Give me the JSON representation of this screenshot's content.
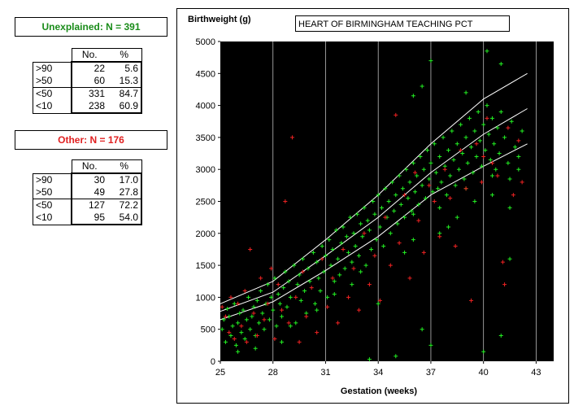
{
  "groups": [
    {
      "title": "Unexplained: N = 391",
      "color": "#1a8c1a",
      "headers": {
        "no": "No.",
        "pct": "%"
      },
      "rows": [
        {
          "label": ">90",
          "no": "22",
          "pct": "5.6"
        },
        {
          "label": ">50",
          "no": "60",
          "pct": "15.3"
        },
        {
          "label": "<50",
          "no": "331",
          "pct": "84.7"
        },
        {
          "label": "<10",
          "no": "238",
          "pct": "60.9"
        }
      ]
    },
    {
      "title": "Other: N = 176",
      "color": "#e02020",
      "headers": {
        "no": "No.",
        "pct": "%"
      },
      "rows": [
        {
          "label": ">90",
          "no": "30",
          "pct": "17.0"
        },
        {
          "label": ">50",
          "no": "49",
          "pct": "27.8"
        },
        {
          "label": "<50",
          "no": "127",
          "pct": "72.2"
        },
        {
          "label": "<10",
          "no": "95",
          "pct": "54.0"
        }
      ]
    }
  ],
  "chart_data": {
    "type": "scatter",
    "title": "HEART OF BIRMINGHAM TEACHING PCT",
    "xlabel": "Gestation (weeks)",
    "ylabel": "Birthweight (g)",
    "xlim": [
      25,
      44
    ],
    "ylim": [
      0,
      5000
    ],
    "xticks": [
      "25",
      "28",
      "31",
      "34",
      "37",
      "40",
      "43"
    ],
    "yticks": [
      "0",
      "500",
      "1000",
      "1500",
      "2000",
      "2500",
      "3000",
      "3500",
      "4000",
      "4500",
      "5000"
    ],
    "xtick_values": [
      25,
      28,
      31,
      34,
      37,
      40,
      43
    ],
    "ytick_values": [
      0,
      500,
      1000,
      1500,
      2000,
      2500,
      3000,
      3500,
      4000,
      4500,
      5000
    ],
    "background": "#000000",
    "grid": "vertical",
    "series_colors": {
      "unexplained": "#22ee22",
      "other": "#ee2222",
      "centile_lines": "#ffffff"
    },
    "centile_lines": [
      {
        "points": [
          [
            25,
            900
          ],
          [
            28,
            1250
          ],
          [
            31,
            1900
          ],
          [
            34,
            2600
          ],
          [
            37,
            3400
          ],
          [
            40,
            4100
          ],
          [
            42.5,
            4500
          ]
        ]
      },
      {
        "points": [
          [
            25,
            780
          ],
          [
            28,
            1080
          ],
          [
            31,
            1650
          ],
          [
            34,
            2250
          ],
          [
            37,
            2950
          ],
          [
            40,
            3550
          ],
          [
            42.5,
            3950
          ]
        ]
      },
      {
        "points": [
          [
            25,
            650
          ],
          [
            28,
            930
          ],
          [
            31,
            1420
          ],
          [
            34,
            1950
          ],
          [
            37,
            2600
          ],
          [
            40,
            3050
          ],
          [
            42.5,
            3400
          ]
        ]
      }
    ],
    "unexplained_points": [
      [
        25.1,
        500
      ],
      [
        25.2,
        650
      ],
      [
        25.3,
        300
      ],
      [
        25.4,
        820
      ],
      [
        25.5,
        700
      ],
      [
        25.6,
        400
      ],
      [
        25.7,
        550
      ],
      [
        25.8,
        900
      ],
      [
        25.9,
        250
      ],
      [
        26.0,
        600
      ],
      [
        26.1,
        750
      ],
      [
        26.2,
        450
      ],
      [
        26.3,
        800
      ],
      [
        26.4,
        350
      ],
      [
        26.5,
        650
      ],
      [
        26.6,
        1000
      ],
      [
        26.7,
        500
      ],
      [
        26.8,
        700
      ],
      [
        26.9,
        850
      ],
      [
        27.0,
        400
      ],
      [
        27.1,
        950
      ],
      [
        27.2,
        600
      ],
      [
        27.3,
        1100
      ],
      [
        27.4,
        750
      ],
      [
        27.5,
        500
      ],
      [
        27.6,
        900
      ],
      [
        27.7,
        1200
      ],
      [
        27.8,
        650
      ],
      [
        27.9,
        1000
      ],
      [
        28.0,
        800
      ],
      [
        28.1,
        1300
      ],
      [
        28.2,
        550
      ],
      [
        28.3,
        1050
      ],
      [
        28.4,
        900
      ],
      [
        28.5,
        700
      ],
      [
        28.6,
        1150
      ],
      [
        28.7,
        1400
      ],
      [
        28.8,
        850
      ],
      [
        28.9,
        1250
      ],
      [
        29.0,
        1000
      ],
      [
        29.2,
        1500
      ],
      [
        29.3,
        600
      ],
      [
        29.4,
        1200
      ],
      [
        29.5,
        1350
      ],
      [
        29.6,
        950
      ],
      [
        29.7,
        1600
      ],
      [
        29.8,
        1100
      ],
      [
        29.9,
        750
      ],
      [
        30.0,
        1450
      ],
      [
        30.1,
        1250
      ],
      [
        30.3,
        1700
      ],
      [
        30.4,
        900
      ],
      [
        30.5,
        1550
      ],
      [
        30.6,
        1300
      ],
      [
        30.7,
        1100
      ],
      [
        30.8,
        1800
      ],
      [
        30.9,
        1400
      ],
      [
        31.0,
        1650
      ],
      [
        31.1,
        1000
      ],
      [
        31.2,
        1900
      ],
      [
        31.3,
        1500
      ],
      [
        31.4,
        1750
      ],
      [
        31.5,
        1250
      ],
      [
        31.6,
        2050
      ],
      [
        31.7,
        1600
      ],
      [
        31.8,
        1350
      ],
      [
        31.9,
        1850
      ],
      [
        32.0,
        2100
      ],
      [
        32.1,
        1450
      ],
      [
        32.2,
        1950
      ],
      [
        32.3,
        1700
      ],
      [
        32.4,
        2250
      ],
      [
        32.5,
        1550
      ],
      [
        32.6,
        2000
      ],
      [
        32.7,
        1800
      ],
      [
        32.8,
        2300
      ],
      [
        32.9,
        1650
      ],
      [
        33.0,
        2150
      ],
      [
        33.1,
        1950
      ],
      [
        33.2,
        2400
      ],
      [
        33.3,
        1500
      ],
      [
        33.4,
        2200
      ],
      [
        33.5,
        2050
      ],
      [
        33.6,
        1750
      ],
      [
        33.7,
        2500
      ],
      [
        33.8,
        2300
      ],
      [
        33.9,
        1900
      ],
      [
        34.0,
        2600
      ],
      [
        34.1,
        2100
      ],
      [
        34.2,
        2400
      ],
      [
        34.3,
        1800
      ],
      [
        34.4,
        2700
      ],
      [
        34.5,
        2250
      ],
      [
        34.6,
        2500
      ],
      [
        34.7,
        2000
      ],
      [
        34.8,
        2800
      ],
      [
        34.9,
        2350
      ],
      [
        35.0,
        2600
      ],
      [
        35.1,
        2150
      ],
      [
        35.2,
        2900
      ],
      [
        35.3,
        2450
      ],
      [
        35.4,
        2700
      ],
      [
        35.5,
        2250
      ],
      [
        35.6,
        3000
      ],
      [
        35.7,
        2550
      ],
      [
        35.8,
        2800
      ],
      [
        35.9,
        2350
      ],
      [
        36.0,
        3100
      ],
      [
        36.1,
        2650
      ],
      [
        36.2,
        2900
      ],
      [
        36.3,
        2450
      ],
      [
        36.4,
        3200
      ],
      [
        36.5,
        2750
      ],
      [
        36.6,
        3000
      ],
      [
        36.7,
        2550
      ],
      [
        36.8,
        3300
      ],
      [
        36.9,
        2850
      ],
      [
        37.0,
        3100
      ],
      [
        37.1,
        2650
      ],
      [
        37.2,
        3400
      ],
      [
        37.3,
        2950
      ],
      [
        37.4,
        2700
      ],
      [
        37.5,
        3200
      ],
      [
        37.6,
        2800
      ],
      [
        37.7,
        3500
      ],
      [
        37.8,
        3050
      ],
      [
        37.9,
        2600
      ],
      [
        38.0,
        3300
      ],
      [
        38.1,
        2900
      ],
      [
        38.2,
        3600
      ],
      [
        38.3,
        3150
      ],
      [
        38.4,
        2750
      ],
      [
        38.5,
        3400
      ],
      [
        38.6,
        3000
      ],
      [
        38.7,
        3700
      ],
      [
        38.8,
        3250
      ],
      [
        38.9,
        2850
      ],
      [
        39.0,
        3500
      ],
      [
        39.1,
        3100
      ],
      [
        39.2,
        3800
      ],
      [
        39.3,
        3350
      ],
      [
        39.4,
        2950
      ],
      [
        39.5,
        3600
      ],
      [
        39.6,
        3200
      ],
      [
        39.7,
        3900
      ],
      [
        39.8,
        3450
      ],
      [
        39.9,
        3050
      ],
      [
        40.0,
        3700
      ],
      [
        40.1,
        3300
      ],
      [
        40.2,
        4000
      ],
      [
        40.3,
        3550
      ],
      [
        40.4,
        3150
      ],
      [
        40.5,
        3800
      ],
      [
        40.6,
        3400
      ],
      [
        40.7,
        3000
      ],
      [
        40.8,
        3650
      ],
      [
        40.9,
        3250
      ],
      [
        41.0,
        3900
      ],
      [
        41.2,
        3500
      ],
      [
        41.4,
        3100
      ],
      [
        41.6,
        3750
      ],
      [
        41.8,
        3350
      ],
      [
        42.0,
        3000
      ],
      [
        42.2,
        3600
      ],
      [
        37.0,
        4700
      ],
      [
        40.2,
        4850
      ],
      [
        41.0,
        4650
      ],
      [
        36.0,
        4150
      ],
      [
        36.5,
        4300
      ],
      [
        39.0,
        4200
      ],
      [
        38.0,
        2100
      ],
      [
        37.5,
        2400
      ],
      [
        39.5,
        2500
      ],
      [
        40.5,
        2600
      ],
      [
        41.5,
        2400
      ],
      [
        40.0,
        150
      ],
      [
        37.0,
        250
      ],
      [
        35.0,
        80
      ],
      [
        36.5,
        500
      ],
      [
        41.5,
        1600
      ],
      [
        41.0,
        400
      ],
      [
        33.5,
        30
      ],
      [
        34.0,
        900
      ],
      [
        32.5,
        1200
      ],
      [
        30.5,
        800
      ],
      [
        28.5,
        300
      ],
      [
        27.0,
        200
      ],
      [
        26.0,
        150
      ],
      [
        29.0,
        550
      ],
      [
        31.5,
        1050
      ],
      [
        33.0,
        1400
      ],
      [
        35.5,
        1700
      ],
      [
        36.0,
        1900
      ],
      [
        38.5,
        2250
      ],
      [
        39.0,
        2700
      ],
      [
        40.5,
        2900
      ],
      [
        41.5,
        2850
      ],
      [
        42.0,
        3200
      ],
      [
        37.5,
        2000
      ],
      [
        36.0,
        2300
      ]
    ],
    "other_points": [
      [
        25.1,
        850
      ],
      [
        25.3,
        700
      ],
      [
        25.5,
        450
      ],
      [
        25.6,
        1000
      ],
      [
        25.8,
        350
      ],
      [
        26.0,
        900
      ],
      [
        26.2,
        550
      ],
      [
        26.4,
        1100
      ],
      [
        26.5,
        300
      ],
      [
        26.7,
        1750
      ],
      [
        26.9,
        750
      ],
      [
        27.1,
        400
      ],
      [
        27.3,
        1300
      ],
      [
        27.5,
        650
      ],
      [
        27.7,
        900
      ],
      [
        27.9,
        1450
      ],
      [
        28.1,
        350
      ],
      [
        28.3,
        1200
      ],
      [
        28.5,
        800
      ],
      [
        28.7,
        2500
      ],
      [
        28.9,
        600
      ],
      [
        29.1,
        3500
      ],
      [
        29.3,
        1000
      ],
      [
        29.5,
        300
      ],
      [
        29.7,
        1400
      ],
      [
        29.9,
        700
      ],
      [
        30.2,
        1150
      ],
      [
        30.5,
        450
      ],
      [
        30.8,
        1600
      ],
      [
        31.1,
        850
      ],
      [
        31.4,
        1300
      ],
      [
        31.7,
        600
      ],
      [
        32.0,
        1750
      ],
      [
        32.3,
        1000
      ],
      [
        32.6,
        1450
      ],
      [
        32.9,
        800
      ],
      [
        33.2,
        2000
      ],
      [
        33.5,
        1200
      ],
      [
        33.8,
        1650
      ],
      [
        34.1,
        950
      ],
      [
        34.4,
        2250
      ],
      [
        34.7,
        1500
      ],
      [
        35.0,
        3850
      ],
      [
        35.2,
        1850
      ],
      [
        35.5,
        2600
      ],
      [
        35.8,
        1300
      ],
      [
        36.1,
        2950
      ],
      [
        36.3,
        2200
      ],
      [
        36.6,
        1700
      ],
      [
        36.9,
        2750
      ],
      [
        37.2,
        2500
      ],
      [
        37.5,
        1950
      ],
      [
        37.8,
        3000
      ],
      [
        38.1,
        2550
      ],
      [
        38.4,
        1800
      ],
      [
        38.7,
        3300
      ],
      [
        39.0,
        2700
      ],
      [
        39.3,
        950
      ],
      [
        39.6,
        3400
      ],
      [
        39.9,
        2800
      ],
      [
        40.2,
        3800
      ],
      [
        40.5,
        3100
      ],
      [
        40.8,
        2900
      ],
      [
        41.1,
        1550
      ],
      [
        41.4,
        3650
      ],
      [
        41.7,
        2600
      ],
      [
        42.0,
        3450
      ],
      [
        42.2,
        2800
      ],
      [
        41.2,
        1200
      ],
      [
        40.0,
        3200
      ]
    ]
  }
}
